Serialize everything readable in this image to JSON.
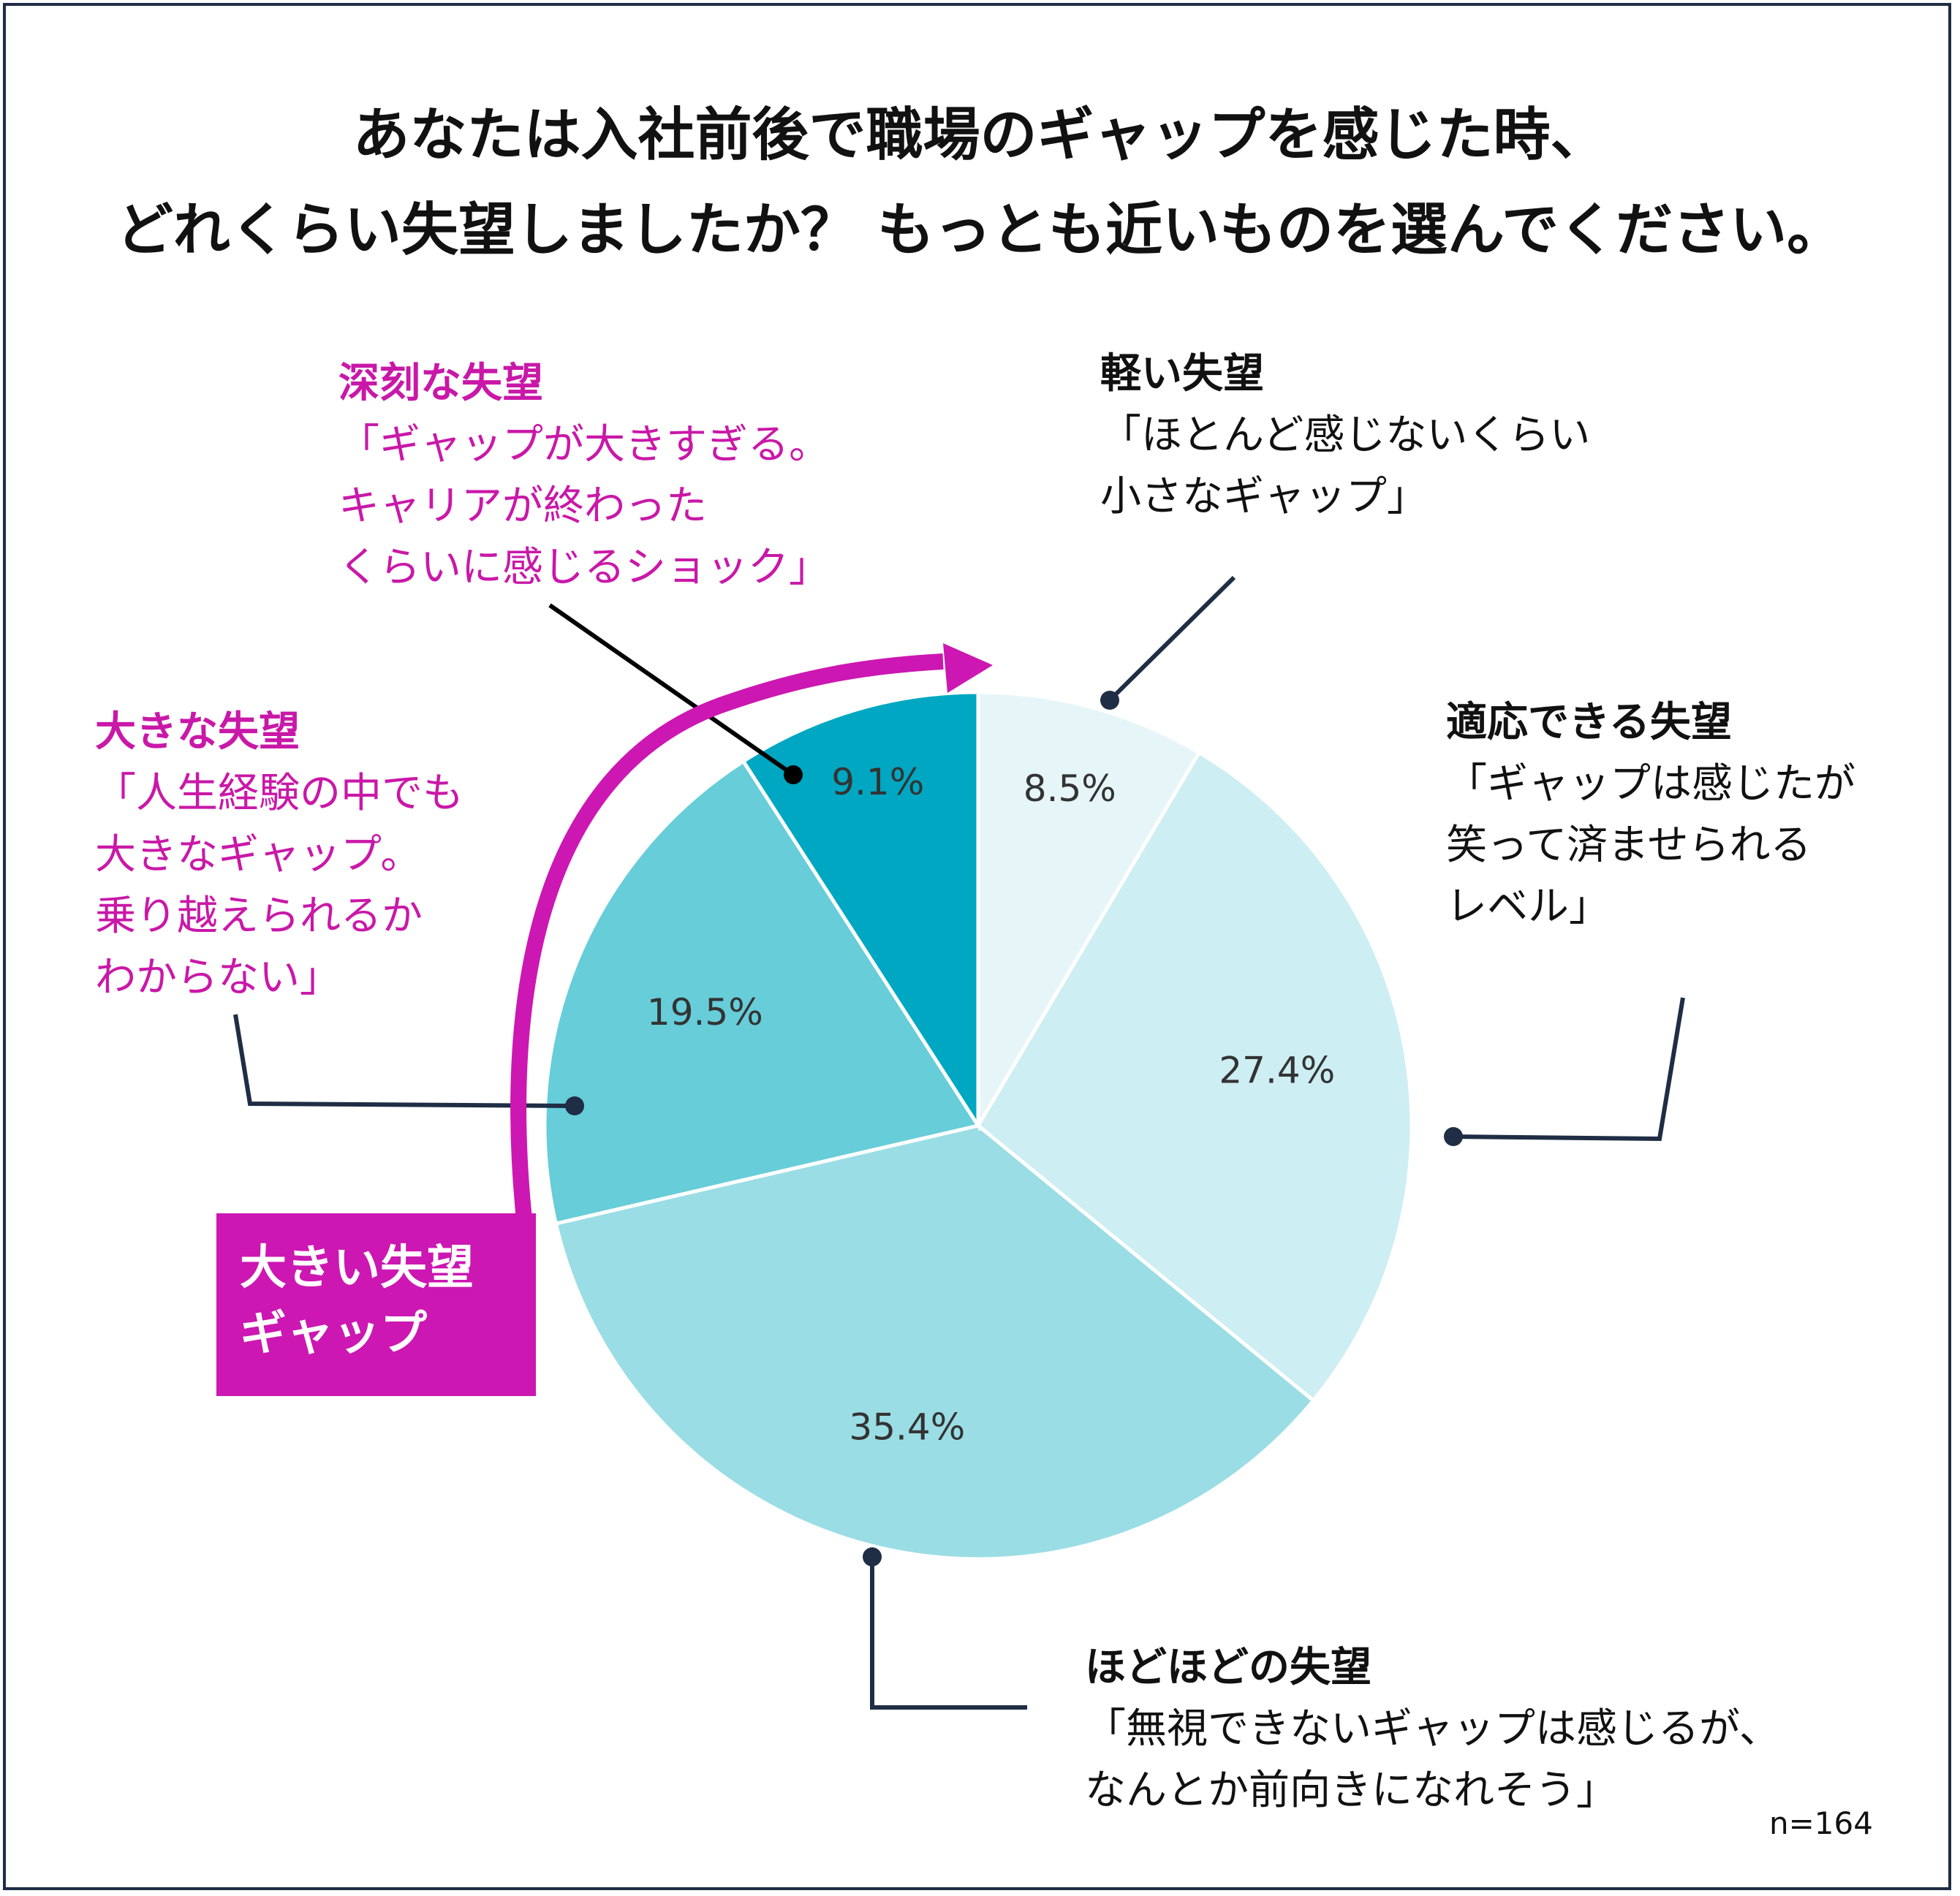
{
  "title": {
    "line1": "あなたは入社前後で職場のギャップを感じた時、",
    "line2": "どれくらい失望しましたか？ もっとも近いものを選んでください。"
  },
  "sample_size": "n=164",
  "highlight_box": {
    "line1": "大きい失望",
    "line2": "ギャップ"
  },
  "colors": {
    "light": "#e6f5f8",
    "adaptive": "#cdeef2",
    "moderate": "#9adde5",
    "large": "#66cdd9",
    "serious": "#00a7c2",
    "accent": "#cc17b2",
    "leader": "#1f2d45"
  },
  "labels": {
    "light": {
      "heading": "軽い失望",
      "lines": [
        "「ほとんど感じないくらい",
        "小さなギャップ」"
      ]
    },
    "adaptive": {
      "heading": "適応できる失望",
      "lines": [
        "「ギャップは感じたが",
        "笑って済ませられる",
        "レベル」"
      ]
    },
    "moderate": {
      "heading": "ほどほどの失望",
      "lines": [
        "「無視できないギャップは感じるが、",
        "なんとか前向きになれそう」"
      ]
    },
    "large": {
      "heading": "大きな失望",
      "lines": [
        "「人生経験の中でも",
        "大きなギャップ。",
        "乗り越えられるか",
        "わからない」"
      ]
    },
    "serious": {
      "heading": "深刻な失望",
      "lines": [
        "「ギャップが大きすぎる。",
        "キャリアが終わった",
        "くらいに感じるショック」"
      ]
    }
  },
  "chart_data": {
    "type": "pie",
    "title": "あなたは入社前後で職場のギャップを感じた時、どれくらい失望しましたか？ もっとも近いものを選んでください。",
    "start": "12 o'clock, clockwise",
    "slices": [
      {
        "key": "light",
        "label": "軽い失望",
        "value": 8.5,
        "value_label": "8.5%",
        "color": "#e6f5f8"
      },
      {
        "key": "adaptive",
        "label": "適応できる失望",
        "value": 27.4,
        "value_label": "27.4%",
        "color": "#cdeef2"
      },
      {
        "key": "moderate",
        "label": "ほどほどの失望",
        "value": 35.4,
        "value_label": "35.4%",
        "color": "#9adde5"
      },
      {
        "key": "large",
        "label": "大きな失望",
        "value": 19.5,
        "value_label": "19.5%",
        "color": "#66cdd9"
      },
      {
        "key": "serious",
        "label": "深刻な失望",
        "value": 9.1,
        "value_label": "9.1%",
        "color": "#00a7c2"
      }
    ]
  }
}
